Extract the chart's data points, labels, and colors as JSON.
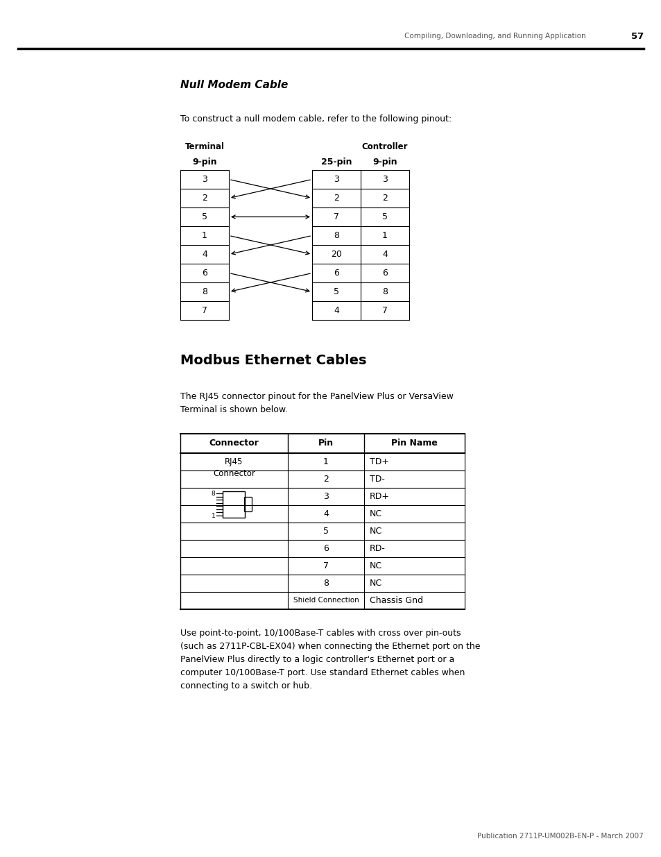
{
  "page_header_text": "Compiling, Downloading, and Running Application",
  "page_number": "57",
  "section1_title": "Null Modem Cable",
  "section1_body": "To construct a null modem cable, refer to the following pinout:",
  "null_modem_terminal_label": "Terminal",
  "null_modem_controller_label": "Controller",
  "null_modem_9pin_label": "9-pin",
  "null_modem_25pin_label": "25-pin",
  "null_modem_9pin_right_label": "9-pin",
  "null_modem_terminal_pins": [
    "3",
    "2",
    "5",
    "1",
    "4",
    "6",
    "8",
    "7"
  ],
  "null_modem_controller_25pins": [
    "3",
    "2",
    "7",
    "8",
    "20",
    "6",
    "5",
    "4"
  ],
  "null_modem_controller_9pins": [
    "3",
    "2",
    "5",
    "1",
    "4",
    "6",
    "8",
    "7"
  ],
  "section2_title": "Modbus Ethernet Cables",
  "section2_body1": "The RJ45 connector pinout for the PanelView Plus or VersaView\nTerminal is shown below.",
  "ethernet_table_header": [
    "Connector",
    "Pin",
    "Pin Name"
  ],
  "ethernet_pins": [
    "1",
    "2",
    "3",
    "4",
    "5",
    "6",
    "7",
    "8"
  ],
  "ethernet_pin_names": [
    "TD+",
    "TD-",
    "RD+",
    "NC",
    "NC",
    "RD-",
    "NC",
    "NC"
  ],
  "section2_body2": "Use point-to-point, 10/100Base-T cables with cross over pin-outs\n(such as 2711P-CBL-EX04) when connecting the Ethernet port on the\nPanelView Plus directly to a logic controller's Ethernet port or a\ncomputer 10/100Base-T port. Use standard Ethernet cables when\nconnecting to a switch or hub.",
  "footer_text": "Publication 2711P-UM002B-EN-P - March 2007",
  "bg_color": "#ffffff"
}
